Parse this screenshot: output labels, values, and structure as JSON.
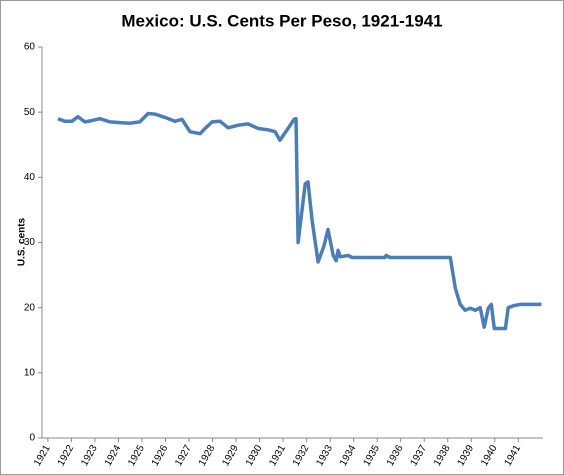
{
  "chart_data": {
    "type": "line",
    "title": "Mexico: U.S. Cents Per Peso, 1921-1941",
    "y_label": "U.S. cents",
    "x": [
      1921.43,
      1921.72,
      1922.02,
      1922.28,
      1922.57,
      1922.87,
      1923.21,
      1923.64,
      1924.06,
      1924.49,
      1924.91,
      1925.26,
      1925.55,
      1925.98,
      1926.4,
      1926.7,
      1927.04,
      1927.47,
      1927.68,
      1927.98,
      1928.32,
      1928.66,
      1929.09,
      1929.51,
      1929.94,
      1930.36,
      1930.66,
      1930.87,
      1931.21,
      1931.47,
      1931.55,
      1931.64,
      1931.94,
      1932.06,
      1932.23,
      1932.49,
      1932.74,
      1932.91,
      1933.13,
      1933.26,
      1933.34,
      1933.43,
      1933.77,
      1933.94,
      1935.34,
      1935.38,
      1935.55,
      1938.11,
      1938.32,
      1938.53,
      1938.74,
      1938.96,
      1939.17,
      1939.38,
      1939.55,
      1939.72,
      1939.85,
      1939.98,
      1940.45,
      1940.57,
      1940.79,
      1941.09,
      1941.98
    ],
    "series": [
      {
        "name": "U.S. cents per peso",
        "color": "#4a7ebb",
        "values": [
          49.0,
          48.6,
          48.6,
          49.3,
          48.5,
          48.7,
          49.0,
          48.5,
          48.4,
          48.3,
          48.5,
          49.8,
          49.7,
          49.2,
          48.6,
          48.9,
          47.0,
          46.7,
          47.5,
          48.5,
          48.6,
          47.6,
          48.0,
          48.2,
          47.5,
          47.3,
          47.0,
          45.7,
          47.5,
          48.9,
          49.0,
          30.0,
          39.0,
          39.3,
          33.5,
          27.0,
          29.5,
          32.0,
          28.0,
          27.2,
          28.8,
          27.8,
          28.0,
          27.7,
          27.7,
          28.0,
          27.7,
          27.7,
          23.0,
          20.5,
          19.6,
          19.9,
          19.6,
          20.0,
          17.0,
          19.9,
          20.5,
          16.8,
          16.8,
          20.0,
          20.3,
          20.5,
          20.5
        ]
      }
    ],
    "xlim": [
      1920.75,
      1942.05
    ],
    "xticks": [
      1921,
      1922,
      1923,
      1924,
      1925,
      1926,
      1927,
      1928,
      1929,
      1930,
      1931,
      1932,
      1933,
      1934,
      1935,
      1936,
      1937,
      1938,
      1939,
      1940,
      1941
    ],
    "ylim": [
      0,
      60
    ],
    "yticks": [
      0,
      10,
      20,
      30,
      40,
      50,
      60
    ]
  }
}
